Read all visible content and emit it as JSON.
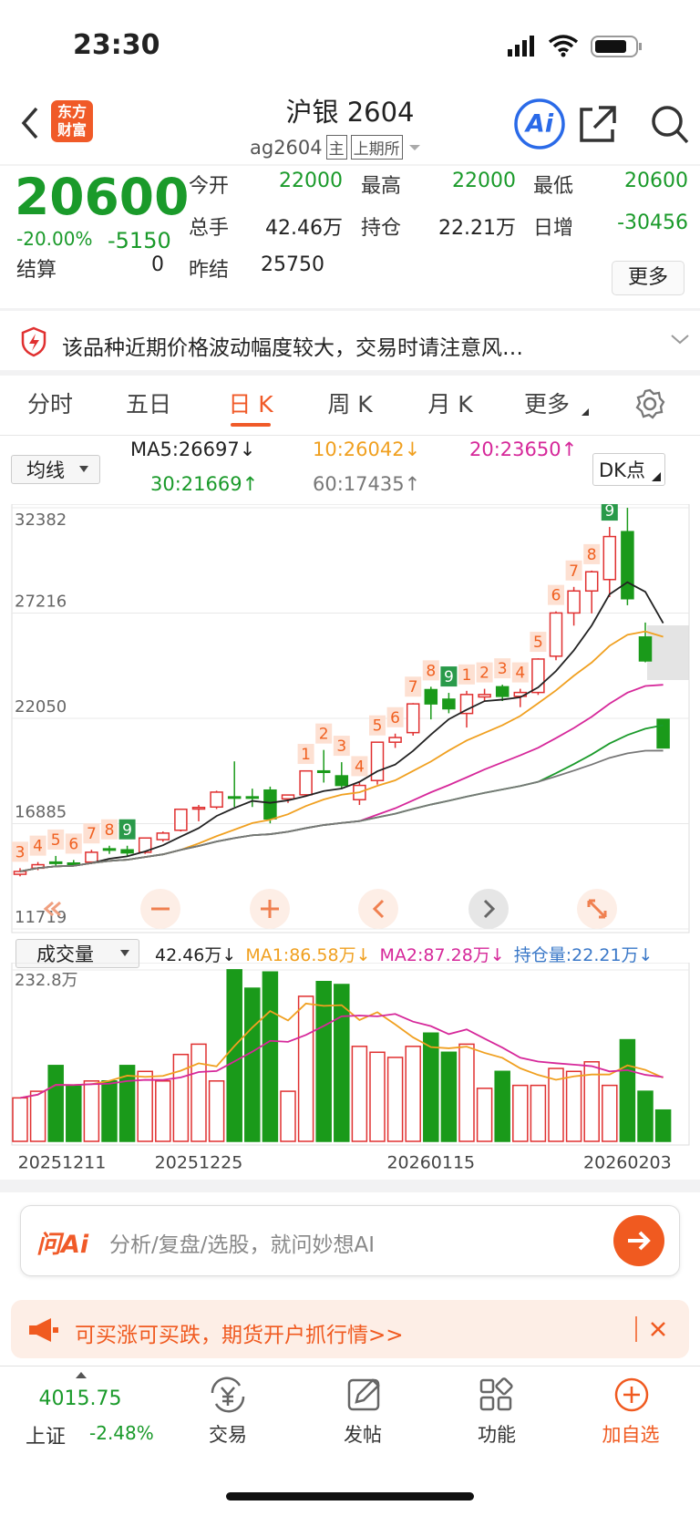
{
  "status": {
    "time": "23:30"
  },
  "nav": {
    "logo": [
      "东方",
      "财富"
    ],
    "title": "沪银 2604",
    "code": "ag2604",
    "tags": [
      "主",
      "上期所"
    ]
  },
  "quote": {
    "price": "20600",
    "change_pct": "-20.00%",
    "change": "-5150",
    "more": "更多",
    "fields": [
      {
        "label": "今开",
        "value": "22000",
        "color": "#1a9a2a"
      },
      {
        "label": "最高",
        "value": "22000",
        "color": "#1a9a2a"
      },
      {
        "label": "最低",
        "value": "20600",
        "color": "#1a9a2a"
      },
      {
        "label": "总手",
        "value": "42.46万",
        "color": "#222"
      },
      {
        "label": "持仓",
        "value": "22.21万",
        "color": "#222"
      },
      {
        "label": "日增",
        "value": "-30456",
        "color": "#1a9a2a"
      },
      {
        "label": "结算",
        "value": "0",
        "color": "#222"
      },
      {
        "label": "昨结",
        "value": "25750",
        "color": "#222"
      }
    ]
  },
  "warning": "该品种近期价格波动幅度较大，交易时请注意风…",
  "tabs": {
    "items": [
      "分时",
      "五日",
      "日 K",
      "周 K",
      "月 K",
      "更多"
    ],
    "active": "日 K"
  },
  "ma_selector": "均线",
  "dk": "DK点",
  "ma": [
    {
      "window": 5,
      "label": "MA5:26697↓",
      "color": "#222222"
    },
    {
      "window": 10,
      "label": "10:26042↓",
      "color": "#f0a020"
    },
    {
      "window": 20,
      "label": "20:23650↑",
      "color": "#d6289a"
    },
    {
      "window": 30,
      "label": "30:21669↑",
      "color": "#1a9a2a"
    },
    {
      "window": 60,
      "label": "60:17435↑",
      "color": "#777777"
    }
  ],
  "volume_legend": {
    "selector": "成交量",
    "items": [
      {
        "label": "42.46万↓",
        "color": "#222222"
      },
      {
        "label": "MA1:86.58万↓",
        "color": "#f0a020"
      },
      {
        "label": "MA2:87.28万↓",
        "color": "#d6289a"
      },
      {
        "label": "持仓量:22.21万↓",
        "color": "#3a78c8"
      }
    ]
  },
  "vol_ma": [
    {
      "window": 5,
      "color": "#f0a020"
    },
    {
      "window": 10,
      "color": "#d6289a"
    }
  ],
  "chart_data": [
    {
      "type": "candlestick",
      "up_color": "#e03030",
      "down_color": "#1a9a1a",
      "categories": [
        null,
        null,
        "20251211",
        null,
        null,
        null,
        null,
        null,
        null,
        null,
        "20251225",
        null,
        null,
        null,
        null,
        null,
        null,
        null,
        null,
        null,
        null,
        null,
        null,
        "20260115",
        null,
        null,
        null,
        null,
        null,
        null,
        null,
        null,
        null,
        null,
        "20260203",
        null,
        null
      ],
      "open": [
        14400,
        14700,
        15000,
        14950,
        15000,
        15650,
        15600,
        15480,
        16100,
        16560,
        17600,
        17700,
        18200,
        18200,
        18530,
        18100,
        18300,
        19470,
        19230,
        18060,
        19000,
        20880,
        21350,
        23460,
        22990,
        22290,
        23100,
        23600,
        23130,
        23320,
        25100,
        27220,
        28300,
        28860,
        31210,
        26040,
        22000
      ],
      "high": [
        14700,
        15000,
        15300,
        15100,
        15600,
        15800,
        15800,
        16200,
        16500,
        17600,
        17800,
        18500,
        19940,
        18600,
        18700,
        18300,
        19500,
        20500,
        19900,
        18900,
        20900,
        21300,
        22800,
        23600,
        23300,
        23400,
        23500,
        23700,
        23500,
        25000,
        27300,
        28500,
        29300,
        31440,
        32380,
        26750,
        22000
      ],
      "low": [
        14300,
        14600,
        14800,
        14800,
        14900,
        15400,
        15300,
        15400,
        16000,
        16500,
        17000,
        17600,
        17700,
        17700,
        16900,
        17900,
        18200,
        18900,
        18600,
        17800,
        18800,
        20600,
        21200,
        22000,
        22300,
        21600,
        22900,
        22900,
        22600,
        23200,
        24900,
        26600,
        27200,
        28000,
        27600,
        24800,
        20600
      ],
      "close": [
        14540,
        14870,
        14960,
        14900,
        15480,
        15600,
        15450,
        16180,
        16420,
        17590,
        17680,
        18430,
        18150,
        18150,
        17120,
        18290,
        19470,
        19400,
        18760,
        18760,
        20880,
        21110,
        22760,
        22760,
        22520,
        23220,
        23220,
        23130,
        23320,
        24960,
        27220,
        28300,
        29240,
        30970,
        27920,
        24870,
        20600
      ],
      "ylim": [
        11719,
        32382
      ],
      "yticks": [
        11719,
        16885,
        22050,
        27216,
        32382
      ],
      "grid": true,
      "td_marks": [
        {
          "label": "3",
          "color": "#f06020"
        },
        {
          "label": "4",
          "color": "#f06020"
        },
        {
          "label": "5",
          "color": "#f06020"
        },
        {
          "label": "6",
          "color": "#f06020"
        },
        {
          "label": "7",
          "color": "#f06020"
        },
        {
          "label": "8",
          "color": "#f06020"
        },
        {
          "label": "9",
          "color": "#2a9a4a"
        },
        null,
        null,
        null,
        null,
        null,
        null,
        null,
        null,
        null,
        {
          "label": "1",
          "color": "#f06020"
        },
        {
          "label": "2",
          "color": "#f06020"
        },
        {
          "label": "3",
          "color": "#f06020"
        },
        {
          "label": "4",
          "color": "#f06020"
        },
        {
          "label": "5",
          "color": "#f06020"
        },
        {
          "label": "6",
          "color": "#f06020"
        },
        {
          "label": "7",
          "color": "#f06020"
        },
        {
          "label": "8",
          "color": "#f06020"
        },
        {
          "label": "9",
          "color": "#2a9a4a"
        },
        {
          "label": "1",
          "color": "#f06020"
        },
        {
          "label": "2",
          "color": "#f06020"
        },
        {
          "label": "3",
          "color": "#f06020"
        },
        {
          "label": "4",
          "color": "#f06020"
        },
        {
          "label": "5",
          "color": "#f06020"
        },
        {
          "label": "6",
          "color": "#f06020"
        },
        {
          "label": "7",
          "color": "#f06020"
        },
        {
          "label": "8",
          "color": "#f06020"
        },
        {
          "label": "9",
          "color": "#2a9a4a"
        },
        null,
        null,
        null
      ]
    },
    {
      "type": "bar",
      "values": [
        59,
        68,
        103,
        76,
        82,
        82,
        103,
        95,
        82,
        118,
        132,
        82,
        233,
        208,
        230,
        68,
        197,
        217,
        213,
        129,
        121,
        114,
        129,
        147,
        121,
        132,
        72,
        95,
        76,
        76,
        99,
        95,
        108,
        76,
        138,
        68,
        42.46
      ],
      "ylim": [
        0,
        232.8
      ],
      "yticks": [
        {
          "value": 232.8,
          "label": "232.8万"
        }
      ]
    }
  ],
  "ai": {
    "brand": "问Ai",
    "placeholder": "分析/复盘/选股，就问妙想AI"
  },
  "promo": "可买涨可买跌，期货开户抓行情>>",
  "bottom": {
    "index_value": "4015.75",
    "index_name": "上证",
    "index_change": "-2.48%",
    "items": [
      "交易",
      "发帖",
      "功能",
      "加自选"
    ]
  }
}
